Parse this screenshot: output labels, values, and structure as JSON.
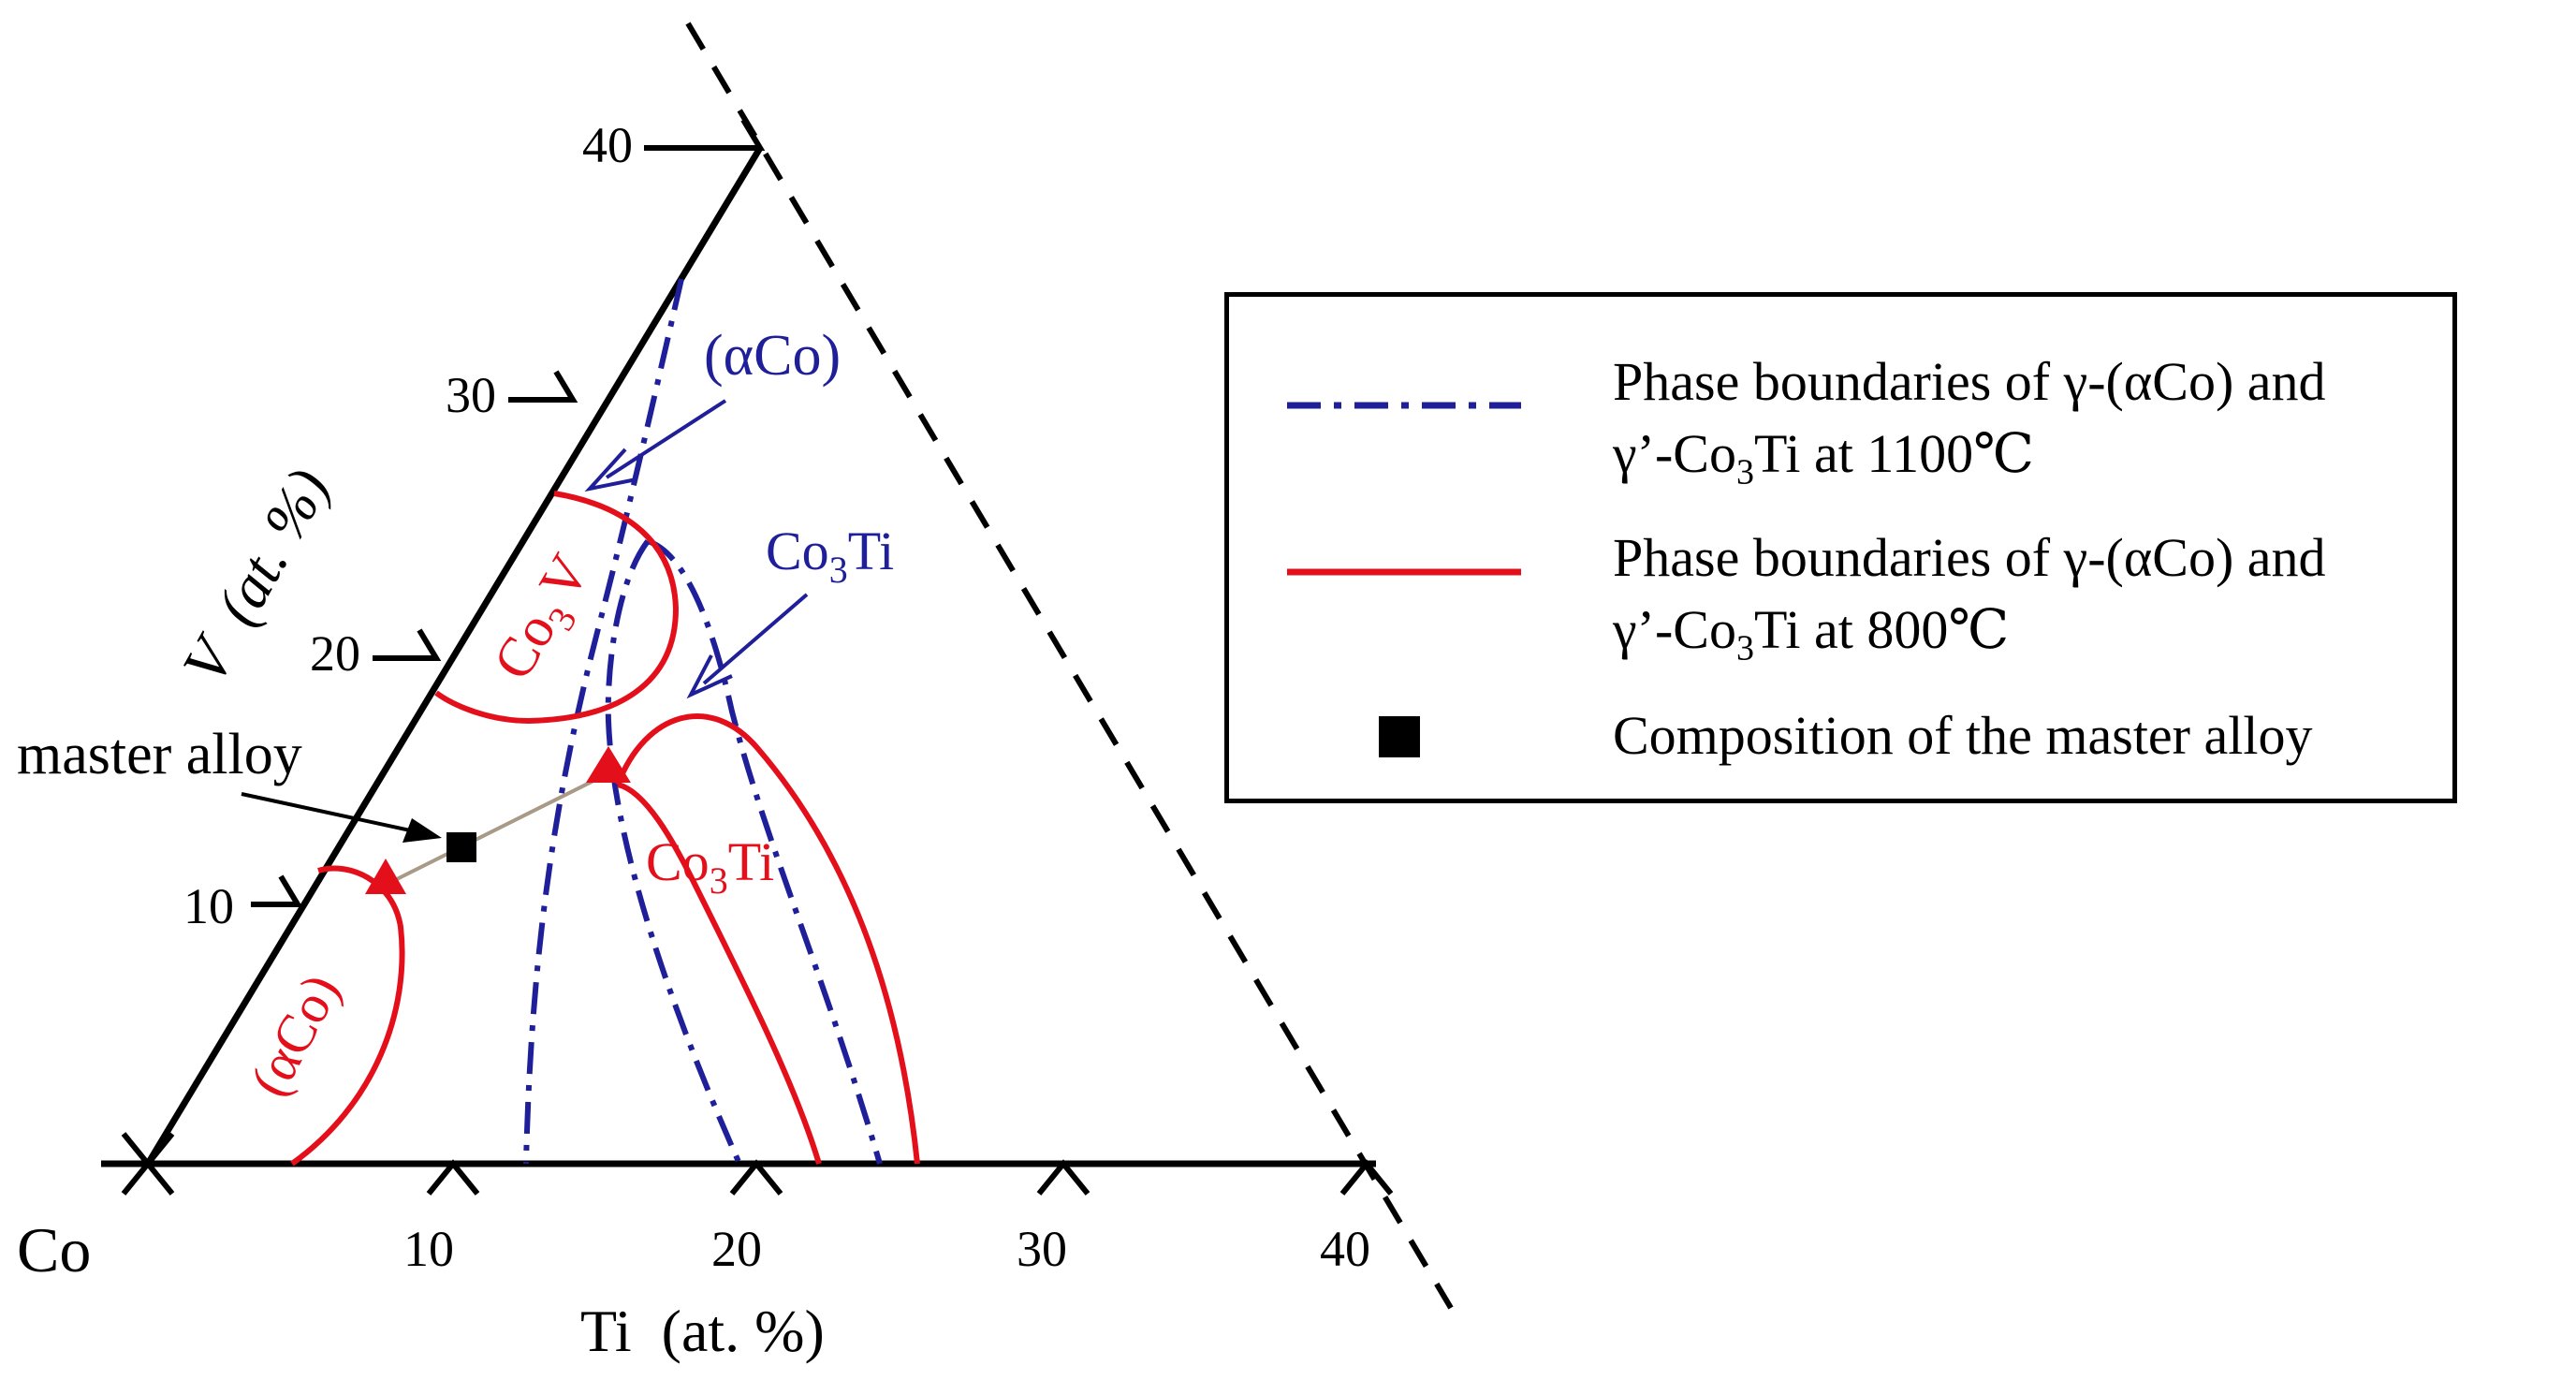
{
  "diagram": {
    "title": "",
    "corner_label": "Co",
    "bottom_axis_label": "Ti  (at. %)",
    "left_axis_label_symbol": "V",
    "left_axis_label_unit": "(at. %)",
    "bottom_ticks": [
      "10",
      "20",
      "30",
      "40"
    ],
    "left_ticks": [
      "10",
      "20",
      "30",
      "40"
    ],
    "region_labels": {
      "blue_alpha_co": "(αCo)",
      "blue_co3ti_main": "Co",
      "blue_co3ti_sub": "3",
      "blue_co3ti_tail": "Ti",
      "red_co3v_main": "Co",
      "red_co3v_sub": "3",
      "red_co3v_tail": "V",
      "red_co3ti_main": "Co",
      "red_co3ti_sub": "3",
      "red_co3ti_tail": "Ti",
      "red_alpha_co": "(αCo)"
    },
    "annotation": "master alloy",
    "colors": {
      "axis": "#000000",
      "boundary_1100": "#1f1f9a",
      "boundary_800": "#e3101c",
      "tie_line": "#a89a86",
      "marker": "#e3101c",
      "master_alloy": "#000000"
    }
  },
  "legend": {
    "entries": [
      {
        "line1": "Phase boundaries of γ-(αCo) and",
        "line2_a": "γ’-Co",
        "line2_sub": "3",
        "line2_b": "Ti at 1100℃",
        "style": "dash-dot",
        "color": "#1f1f9a"
      },
      {
        "line1": "Phase boundaries of γ-(αCo) and",
        "line2_a": "γ’-Co",
        "line2_sub": "3",
        "line2_b": "Ti at 800℃",
        "style": "solid",
        "color": "#e3101c"
      },
      {
        "line1": "Composition of the master alloy",
        "style": "square",
        "color": "#000000"
      }
    ]
  }
}
